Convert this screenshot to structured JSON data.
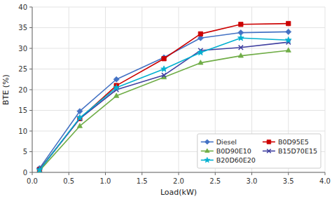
{
  "chart_data": {
    "type": "line",
    "x_label": "Load(kW)",
    "y_label": "BTE (%)",
    "x": [
      0.1,
      0.65,
      1.15,
      1.8,
      2.3,
      2.85,
      3.5
    ],
    "series": [
      {
        "name": "Diesel",
        "color": "#4472C4",
        "marker": "diamond",
        "values": [
          1.0,
          14.8,
          22.5,
          27.8,
          32.5,
          33.8,
          34.0
        ]
      },
      {
        "name": "B0D95E5",
        "color": "#CC0000",
        "marker": "square",
        "values": [
          0.7,
          13.0,
          21.0,
          27.5,
          33.5,
          35.8,
          36.0
        ]
      },
      {
        "name": "B0D90E10",
        "color": "#70AD47",
        "marker": "triangle",
        "values": [
          0.4,
          11.2,
          18.5,
          23.0,
          26.5,
          28.2,
          29.5
        ]
      },
      {
        "name": "B15D70E15",
        "color": "#4040A0",
        "marker": "x",
        "values": [
          0.6,
          13.0,
          20.0,
          23.5,
          29.5,
          30.2,
          31.5
        ]
      },
      {
        "name": "B20D60E20",
        "color": "#00B0D0",
        "marker": "star",
        "values": [
          0.6,
          13.2,
          20.5,
          25.0,
          29.0,
          32.5,
          32.0
        ]
      }
    ],
    "xlim": [
      0.0,
      4.0
    ],
    "ylim": [
      0,
      40
    ],
    "xticks": [
      {
        "value": 0.0,
        "label": "0.0"
      },
      0.5,
      {
        "value": 1.0,
        "label": "1.0"
      },
      1.5,
      {
        "value": 2.0,
        "label": "2.0"
      },
      2.5,
      {
        "value": 3.0,
        "label": "3.0"
      },
      3.5,
      {
        "value": 4.0,
        "label": "4.0"
      }
    ],
    "yticks": [
      0,
      5,
      10,
      15,
      20,
      25,
      30,
      35,
      40
    ],
    "grid": true,
    "legend": "lower right"
  }
}
